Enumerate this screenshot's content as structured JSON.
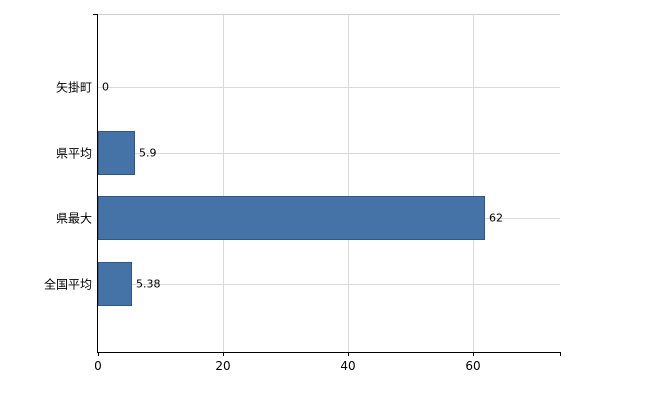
{
  "chart_data": {
    "type": "bar",
    "orientation": "horizontal",
    "title": "",
    "categories": [
      "矢掛町",
      "県平均",
      "県最大",
      "全国平均"
    ],
    "values": [
      0,
      5.9,
      62,
      5.38
    ],
    "value_labels": [
      "0",
      "5.9",
      "62",
      "5.38"
    ],
    "xlim": [
      0,
      74
    ],
    "x_ticks": [
      0,
      20,
      40,
      60
    ],
    "x_tick_labels": [
      "0",
      "20",
      "40",
      "60"
    ],
    "bar_fill_color": "#4573A7",
    "bar_border_color": "#2E5782",
    "grid": "on",
    "legend": "none"
  }
}
